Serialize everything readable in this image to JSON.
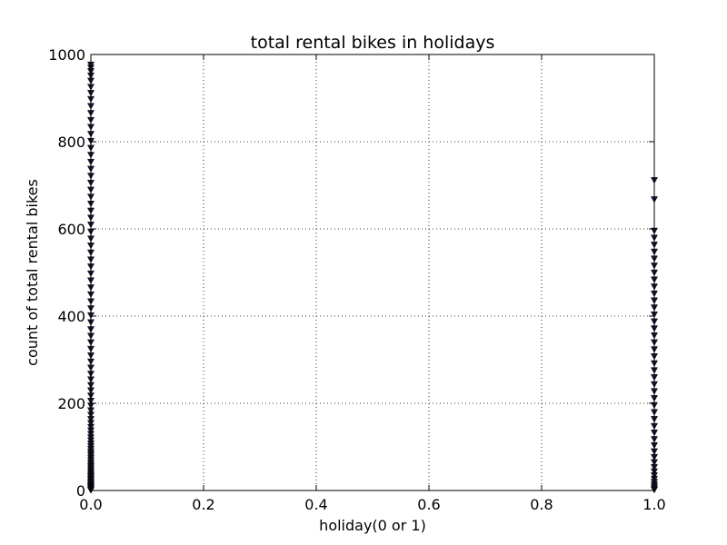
{
  "chart_data": {
    "type": "scatter",
    "title": "total rental bikes in holidays",
    "xlabel": "holiday(0 or 1)",
    "ylabel": "count of total rental bikes",
    "xlim": [
      0.0,
      1.0
    ],
    "ylim": [
      0,
      1000
    ],
    "xticks": [
      "0.0",
      "0.2",
      "0.4",
      "0.6",
      "0.8",
      "1.0"
    ],
    "yticks": [
      "0",
      "200",
      "400",
      "600",
      "800",
      "1000"
    ],
    "grid": true,
    "marker": "triangle-down",
    "marker_color": "#1a1a3a",
    "series": [
      {
        "x": 0,
        "values": [
          1,
          3,
          5,
          8,
          10,
          12,
          15,
          18,
          20,
          24,
          27,
          30,
          33,
          36,
          40,
          44,
          48,
          52,
          56,
          60,
          65,
          70,
          75,
          80,
          85,
          90,
          96,
          102,
          108,
          115,
          122,
          130,
          138,
          146,
          155,
          164,
          174,
          184,
          195,
          206,
          218,
          230,
          242,
          255,
          268,
          282,
          296,
          310,
          325,
          340,
          355,
          370,
          386,
          402,
          418,
          434,
          450,
          466,
          482,
          498,
          514,
          530,
          546,
          562,
          578,
          594,
          610,
          626,
          642,
          658,
          674,
          690,
          706,
          722,
          738,
          754,
          770,
          786,
          802,
          818,
          834,
          850,
          866,
          882,
          898,
          912,
          926,
          940,
          952,
          962,
          970,
          977
        ]
      },
      {
        "x": 1,
        "values": [
          2,
          5,
          9,
          14,
          20,
          27,
          35,
          44,
          54,
          65,
          77,
          90,
          104,
          118,
          133,
          148,
          164,
          180,
          196,
          212,
          228,
          244,
          260,
          276,
          292,
          308,
          324,
          340,
          356,
          372,
          388,
          404,
          420,
          436,
          452,
          468,
          484,
          500,
          516,
          532,
          548,
          564,
          580,
          596,
          668,
          712
        ]
      }
    ]
  }
}
